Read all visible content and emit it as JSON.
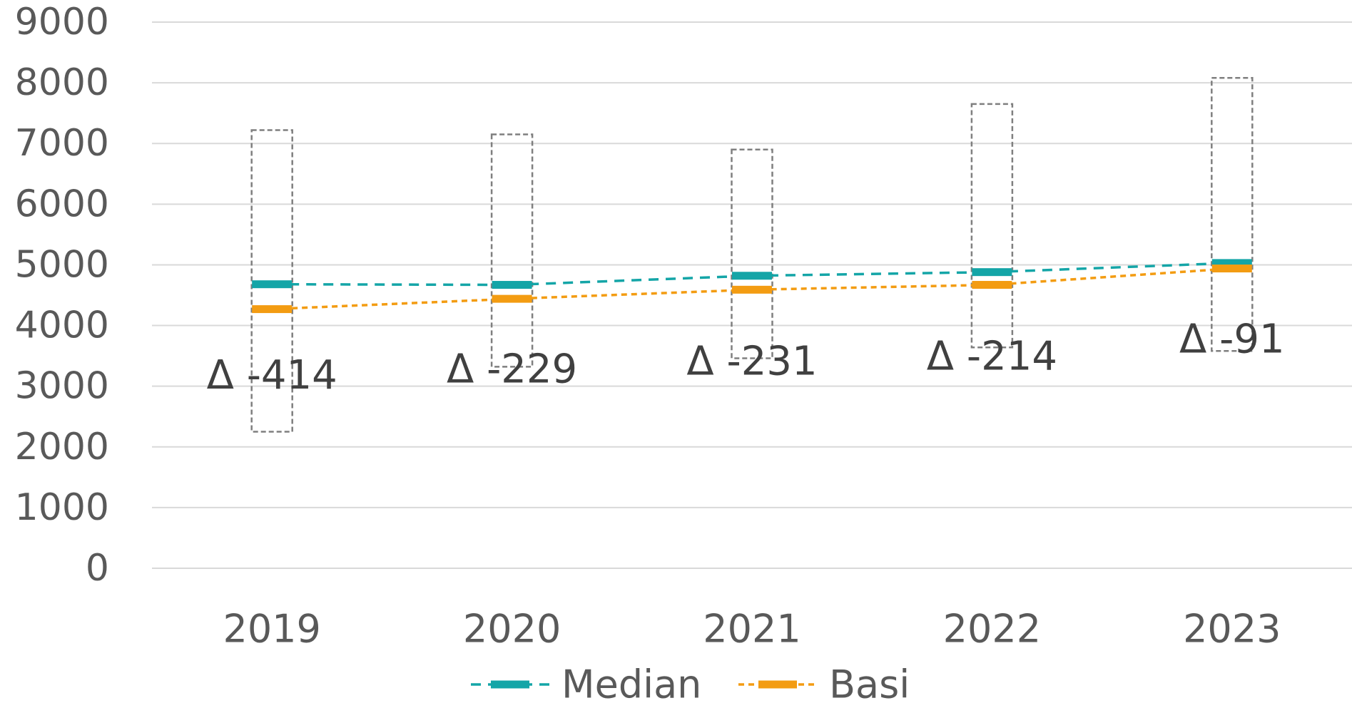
{
  "chart_data": {
    "type": "line",
    "categories": [
      "2019",
      "2020",
      "2021",
      "2022",
      "2023"
    ],
    "ylim": [
      0,
      9000
    ],
    "y_ticks": [
      "0",
      "1000",
      "2000",
      "3000",
      "4000",
      "5000",
      "6000",
      "7000",
      "8000",
      "9000"
    ],
    "grid": true,
    "legend_position": "bottom",
    "series": [
      {
        "name": "Median",
        "color": "#14A5A7",
        "values": [
          4680,
          4670,
          4820,
          4880,
          5030
        ]
      },
      {
        "name": "Basi",
        "color": "#F39C12",
        "values": [
          4270,
          4440,
          4590,
          4670,
          4940
        ]
      }
    ],
    "ranges": [
      {
        "low": 2250,
        "high": 7220
      },
      {
        "low": 3320,
        "high": 7150
      },
      {
        "low": 3460,
        "high": 6900
      },
      {
        "low": 3640,
        "high": 7650
      },
      {
        "low": 3580,
        "high": 8080
      }
    ],
    "delta_labels": [
      "Δ -414",
      "Δ -229",
      "Δ -231",
      "Δ -214",
      "Δ -91"
    ],
    "delta_label_values": [
      3180,
      3280,
      3410,
      3490,
      3770
    ],
    "colors": {
      "grid": "#D9D9D9",
      "range_box": "#7F7F7F",
      "text": "#595959"
    }
  }
}
